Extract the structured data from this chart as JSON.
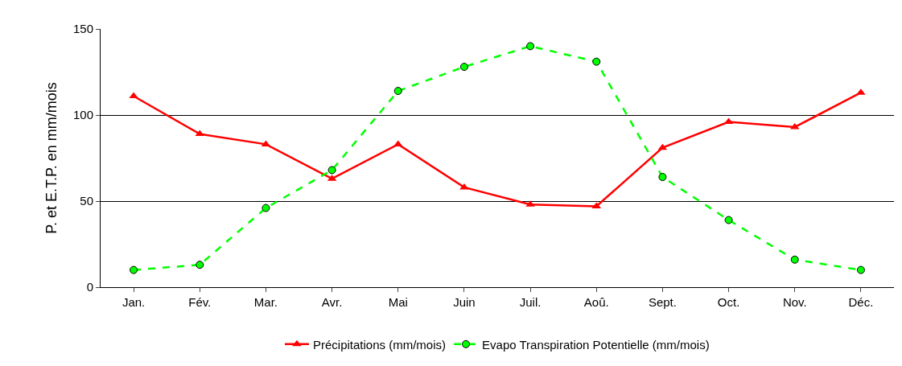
{
  "chart_data": {
    "type": "line",
    "ylabel": "P. et E.T.P. en mm/mois",
    "categories": [
      "Jan.",
      "Fév.",
      "Mar.",
      "Avr.",
      "Mai",
      "Juin",
      "Juil.",
      "Aoû.",
      "Sept.",
      "Oct.",
      "Nov.",
      "Déc."
    ],
    "series": [
      {
        "name": "Précipitations (mm/mois)",
        "color": "#ff0000",
        "marker": "triangle",
        "line_style": "solid",
        "values": [
          111,
          89,
          83,
          63,
          83,
          58,
          48,
          47,
          81,
          96,
          93,
          113
        ]
      },
      {
        "name": "Evapo Transpiration Potentielle (mm/mois)",
        "color": "#00ff00",
        "marker": "circle",
        "line_style": "dashed",
        "values": [
          10,
          13,
          46,
          68,
          114,
          128,
          140,
          131,
          64,
          39,
          16,
          10
        ]
      }
    ],
    "ylim": [
      0,
      150
    ],
    "yticks": [
      0,
      50,
      100,
      150
    ],
    "grid": "y",
    "legend": "bottom"
  }
}
